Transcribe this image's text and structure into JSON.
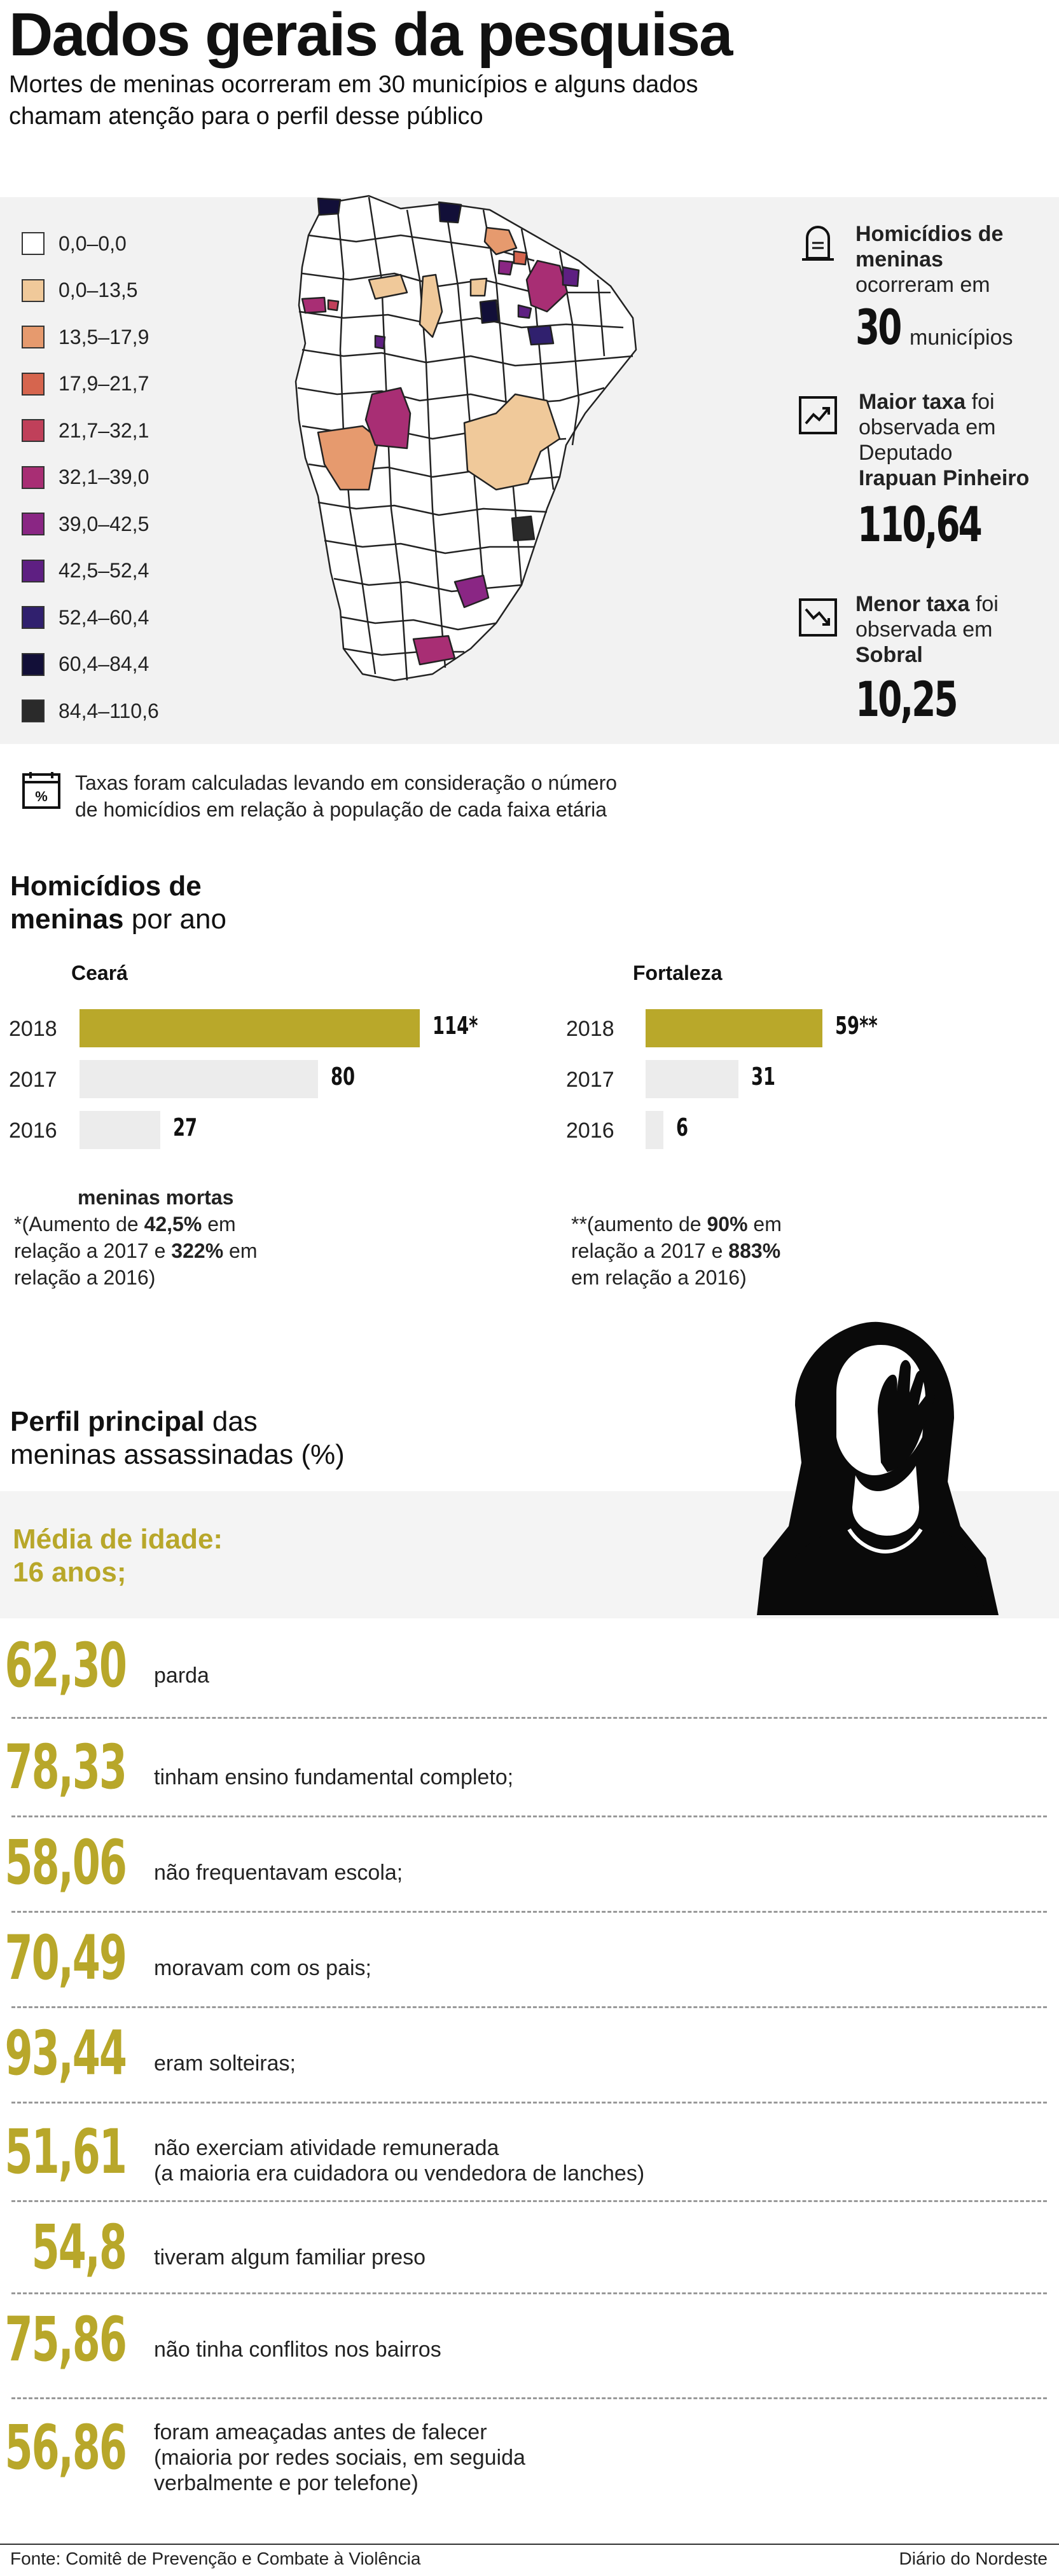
{
  "header": {
    "title": "Dados gerais da pesquisa",
    "subtitle": "Mortes de meninas ocorreram em 30 municípios e alguns dados chamam atenção para o perfil desse público"
  },
  "legend": [
    {
      "label": "0,0–0,0",
      "color": "#ffffff"
    },
    {
      "label": "0,0–13,5",
      "color": "#f0c99a"
    },
    {
      "label": "13,5–17,9",
      "color": "#e69a6e"
    },
    {
      "label": "17,9–21,7",
      "color": "#d6654e"
    },
    {
      "label": "21,7–32,1",
      "color": "#c0405a"
    },
    {
      "label": "32,1–39,0",
      "color": "#a82e74"
    },
    {
      "label": "39,0–42,5",
      "color": "#8a2684"
    },
    {
      "label": "42,5–52,4",
      "color": "#5e1f82"
    },
    {
      "label": "52,4–60,4",
      "color": "#30206e"
    },
    {
      "label": "60,4–84,4",
      "color": "#120f38"
    },
    {
      "label": "84,4–110,6",
      "color": "#2a2a2a"
    }
  ],
  "stats": {
    "homicides": {
      "line1": "Homicídios de",
      "line2": "meninas",
      "line3": "ocorreram em",
      "number": "30",
      "unit": "municípios"
    },
    "max": {
      "bold": "Maior taxa",
      "rest": " foi",
      "line2": "observada em",
      "line3": "Deputado",
      "line4": "Irapuan Pinheiro",
      "number": "110,64"
    },
    "min": {
      "bold": "Menor taxa",
      "rest": " foi",
      "line2": "observada em",
      "line3": "Sobral",
      "number": "10,25"
    }
  },
  "note": {
    "line1": "Taxas foram calculadas levando em consideração o número",
    "line2": "de homicídios em relação à população de cada faixa etária"
  },
  "homicides_section": {
    "line1_bold": "Homicídios de",
    "line2_bold": "meninas",
    "line2_rest": " por ano"
  },
  "chart_data": [
    {
      "type": "bar",
      "title": "Ceará",
      "categories": [
        "2018",
        "2017",
        "2016"
      ],
      "values": [
        114,
        80,
        27
      ],
      "value_labels": [
        "114*",
        "80",
        "27"
      ],
      "series_label": "meninas mortas",
      "colors": {
        "highlight": "#b9a82a",
        "other": "#ececec"
      }
    },
    {
      "type": "bar",
      "title": "Fortaleza",
      "categories": [
        "2018",
        "2017",
        "2016"
      ],
      "values": [
        59,
        31,
        6
      ],
      "value_labels": [
        "59**",
        "31",
        "6"
      ],
      "colors": {
        "highlight": "#b9a82a",
        "other": "#ececec"
      }
    }
  ],
  "chart_notes": {
    "ceara": {
      "label": "meninas mortas",
      "p1": "*(Aumento de ",
      "b1": "42,5%",
      "p2": " em",
      "p3": "relação a 2017 e ",
      "b2": "322%",
      "p4": " em",
      "p5": "relação a 2016)"
    },
    "fortaleza": {
      "p1": "**(aumento de ",
      "b1": "90%",
      "p2": " em",
      "p3": "relação a 2017 e ",
      "b2": "883%",
      "p5": "em relação a 2016)"
    }
  },
  "profile": {
    "title_bold": "Perfil principal",
    "title_rest": " das",
    "title_line2": "meninas assassinadas (%)",
    "age_line1": "Média de idade:",
    "age_line2": "16 anos;",
    "items": [
      {
        "value": "62,30",
        "label": "parda",
        "label2": ""
      },
      {
        "value": "78,33",
        "label": "tinham ensino fundamental completo;",
        "label2": ""
      },
      {
        "value": "58,06",
        "label": "não frequentavam escola;",
        "label2": ""
      },
      {
        "value": "70,49",
        "label": "moravam com os pais;",
        "label2": ""
      },
      {
        "value": "93,44",
        "label": "eram solteiras;",
        "label2": ""
      },
      {
        "value": "51,61",
        "label": "não exerciam atividade remunerada",
        "label2": "(a maioria era cuidadora ou vendedora de lanches)"
      },
      {
        "value": "54,8",
        "label": "tiveram algum familiar preso",
        "label2": ""
      },
      {
        "value": "75,86",
        "label": "não tinha conflitos nos bairros",
        "label2": ""
      },
      {
        "value": "56,86",
        "label": "foram ameaçadas antes de falecer",
        "label2": "(maioria por redes sociais, em seguida",
        "label3": "verbalmente e por telefone)"
      }
    ]
  },
  "footer": {
    "source": "Fonte: Comitê de Prevenção e Combate à Violência",
    "credit": "Diário do Nordeste"
  }
}
